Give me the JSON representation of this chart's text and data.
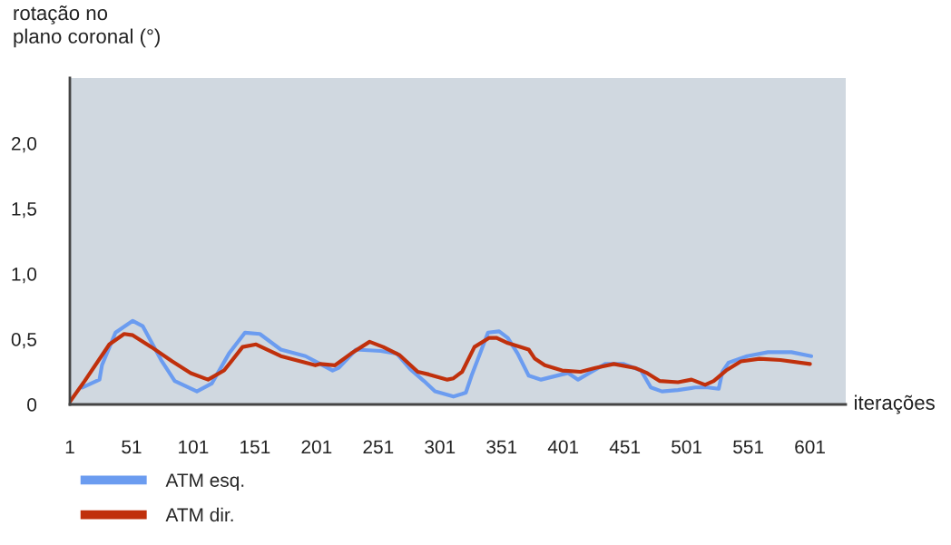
{
  "chart_data": {
    "type": "line",
    "xlabel": "iterações",
    "ylabel": "rotação no\nplano coronal (°)",
    "xlim": [
      1,
      630
    ],
    "xticks": [
      1,
      51,
      101,
      151,
      201,
      251,
      301,
      351,
      401,
      451,
      501,
      551,
      601
    ],
    "ylim": [
      0,
      2.5
    ],
    "yticks": [
      {
        "value": 0,
        "label": "0"
      },
      {
        "value": 0.5,
        "label": "0,5"
      },
      {
        "value": 1.0,
        "label": "1,0"
      },
      {
        "value": 1.5,
        "label": "1,5"
      },
      {
        "value": 2.0,
        "label": "2,0"
      },
      {
        "value": 2.5,
        "label": null
      }
    ],
    "grid": false,
    "legend": "bottom left",
    "marker": "none",
    "line_style": "solid",
    "series": [
      {
        "name": "ATM esq.",
        "color": "#6b9cf0",
        "x": [
          11,
          25,
          27,
          38,
          52,
          60,
          75,
          86,
          104,
          116,
          130,
          143,
          155,
          172,
          192,
          204,
          214,
          219,
          233,
          253,
          266,
          277,
          288,
          297,
          312,
          322,
          327,
          340,
          349,
          356,
          364,
          373,
          383,
          400,
          405,
          413,
          422,
          435,
          450,
          464,
          472,
          481,
          494,
          508,
          518,
          527,
          530,
          535,
          550,
          567,
          586,
          602
        ],
        "values": [
          0.13,
          0.19,
          0.3,
          0.55,
          0.64,
          0.6,
          0.34,
          0.18,
          0.1,
          0.16,
          0.39,
          0.55,
          0.54,
          0.42,
          0.37,
          0.31,
          0.26,
          0.28,
          0.42,
          0.41,
          0.39,
          0.27,
          0.18,
          0.1,
          0.06,
          0.09,
          0.23,
          0.55,
          0.56,
          0.51,
          0.39,
          0.22,
          0.19,
          0.23,
          0.24,
          0.19,
          0.24,
          0.31,
          0.31,
          0.26,
          0.13,
          0.1,
          0.11,
          0.13,
          0.13,
          0.12,
          0.25,
          0.32,
          0.37,
          0.4,
          0.4,
          0.37
        ]
      },
      {
        "name": "ATM dir.",
        "color": "#c0300c",
        "x": [
          1,
          13,
          33,
          45,
          52,
          67,
          84,
          99,
          113,
          126,
          141,
          152,
          172,
          200,
          204,
          216,
          229,
          244,
          255,
          268,
          283,
          292,
          307,
          312,
          319,
          329,
          341,
          347,
          356,
          373,
          378,
          386,
          400,
          415,
          427,
          442,
          459,
          469,
          479,
          494,
          505,
          516,
          523,
          533,
          545,
          560,
          577,
          601
        ],
        "values": [
          0.02,
          0.18,
          0.46,
          0.54,
          0.53,
          0.44,
          0.33,
          0.24,
          0.19,
          0.26,
          0.44,
          0.46,
          0.37,
          0.3,
          0.31,
          0.3,
          0.39,
          0.48,
          0.44,
          0.38,
          0.25,
          0.23,
          0.19,
          0.2,
          0.25,
          0.44,
          0.51,
          0.51,
          0.47,
          0.42,
          0.35,
          0.3,
          0.26,
          0.25,
          0.28,
          0.31,
          0.28,
          0.24,
          0.18,
          0.17,
          0.19,
          0.15,
          0.18,
          0.26,
          0.33,
          0.35,
          0.34,
          0.31
        ]
      }
    ]
  }
}
